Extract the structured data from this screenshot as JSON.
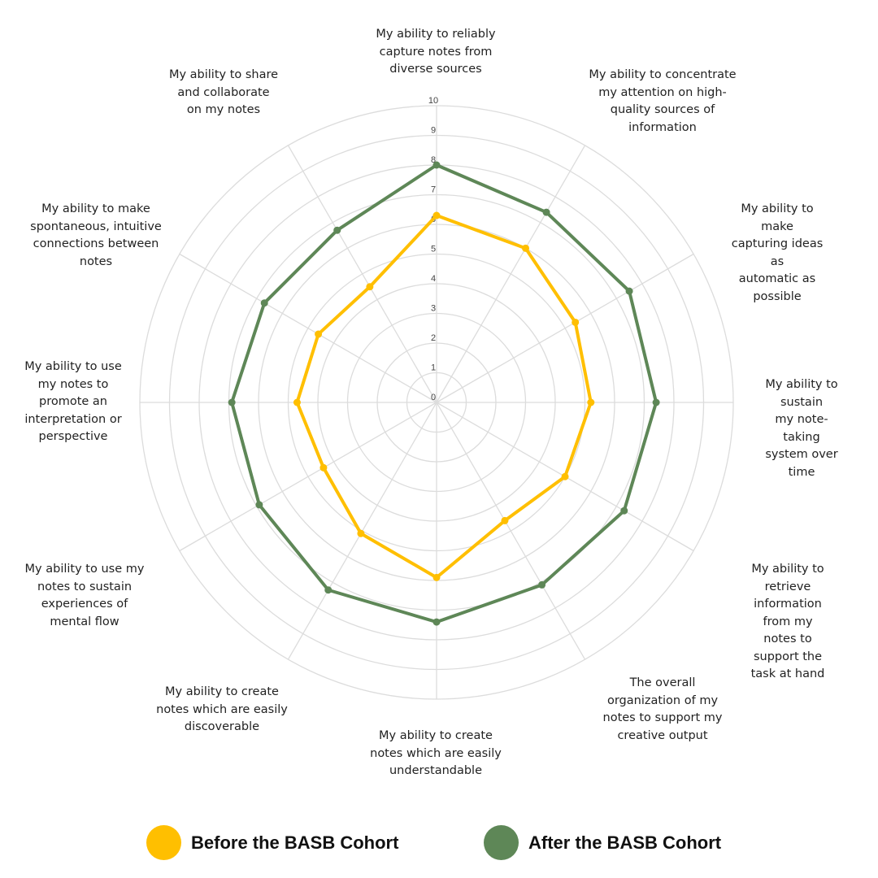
{
  "chart_data": {
    "type": "radar",
    "rlim": [
      0,
      10
    ],
    "ticks": [
      "0",
      "1",
      "2",
      "3",
      "4",
      "5",
      "6",
      "7",
      "8",
      "9",
      "10"
    ],
    "grid": true,
    "legend_position": "bottom",
    "categories": [
      "My ability to reliably\ncapture notes from\ndiverse sources",
      "My ability to concentrate\nmy attention on high-\nquality sources of\ninformation",
      "My ability to make\ncapturing ideas as\nautomatic as possible",
      "My ability to sustain\nmy note-taking\nsystem over time",
      "My ability to retrieve\ninformation from my\nnotes to support the\ntask at hand",
      "The overall\norganization of my\nnotes to support my\ncreative output",
      "My ability to create\nnotes which are easily\nunderstandable",
      "My ability to create\nnotes which are easily\ndiscoverable",
      "My ability to use my\nnotes to sustain\nexperiences of\nmental flow",
      "My ability to use\nmy notes to\npromote an\ninterpretation or\nperspective",
      "My ability to make\nspontaneous, intuitive\nconnections between\nnotes",
      "My ability to share\nand collaborate\non my notes"
    ],
    "series": [
      {
        "name": "Before the BASB Cohort",
        "color": "#FFBF00",
        "values": [
          6.3,
          6.0,
          5.4,
          5.2,
          5.0,
          4.6,
          5.9,
          5.1,
          4.4,
          4.7,
          4.6,
          4.5
        ]
      },
      {
        "name": "After the BASB Cohort",
        "color": "#5E8757",
        "values": [
          8.0,
          7.4,
          7.5,
          7.4,
          7.3,
          7.1,
          7.4,
          7.3,
          6.9,
          6.9,
          6.7,
          6.7
        ]
      }
    ]
  }
}
